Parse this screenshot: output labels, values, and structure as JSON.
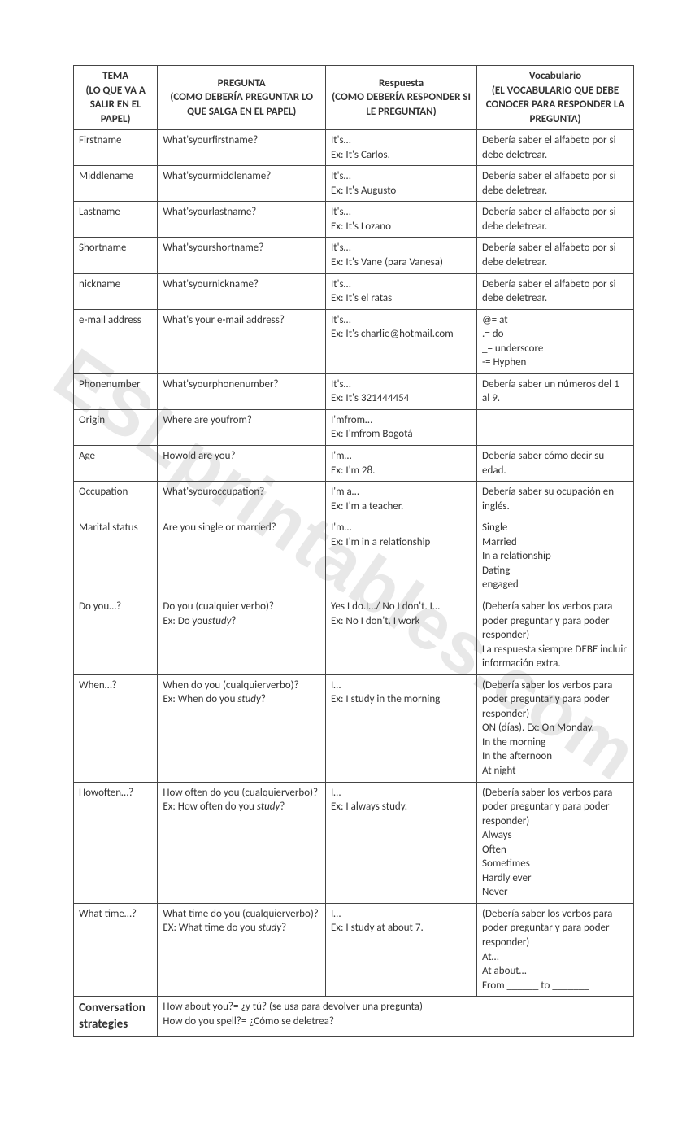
{
  "watermark": "ESLprintables.com",
  "headers": {
    "tema": "TEMA\n(LO QUE VA A SALIR EN EL PAPEL)",
    "pregunta": "PREGUNTA\n(COMO DEBERÍA PREGUNTAR LO QUE SALGA EN EL PAPEL)",
    "respuesta": "Respuesta\n(COMO DEBERÍA RESPONDER SI LE PREGUNTAN)",
    "vocabulario": "Vocabulario\n(EL VOCABULARIO QUE DEBE CONOCER PARA RESPONDER LA PREGUNTA)"
  },
  "rows": [
    {
      "tema": "Firstname",
      "pregunta": "What'syourfirstname?",
      "respuesta": "It's…\nEx: It's Carlos.",
      "vocab": "Debería saber el alfabeto por si debe deletrear."
    },
    {
      "tema": "Middlename",
      "pregunta": "What'syourmiddlename?",
      "respuesta": "It's…\nEx: It's Augusto",
      "vocab": "Debería saber el alfabeto por si debe deletrear."
    },
    {
      "tema": "Lastname",
      "pregunta": "What'syourlastname?",
      "respuesta": "It's…\nEx: It's Lozano",
      "vocab": "Debería saber el alfabeto por si debe deletrear."
    },
    {
      "tema": "Shortname",
      "pregunta": "What'syourshortname?",
      "respuesta": "It's…\nEx: It's Vane (para Vanesa)",
      "vocab": "Debería saber el alfabeto por si debe deletrear."
    },
    {
      "tema": "nickname",
      "pregunta": "What'syournickname?",
      "respuesta": "It's…\nEx: It's el ratas",
      "vocab": "Debería saber el alfabeto por si debe deletrear."
    },
    {
      "tema": "e-mail address",
      "pregunta": "What's your e-mail address?",
      "respuesta": "It's…\nEx: It's charlie@hotmail.com",
      "vocab": "@= at\n.= do\n_= underscore\n-= Hyphen"
    },
    {
      "tema": "Phonenumber",
      "pregunta": "What'syourphonenumber?",
      "respuesta": "It's…\nEx: It's 321444454",
      "vocab": "Debería saber un números del 1 al 9."
    },
    {
      "tema": "Origin",
      "pregunta": "Where are youfrom?",
      "respuesta": "I'mfrom…\nEx: I'mfrom Bogotá",
      "vocab": ""
    },
    {
      "tema": "Age",
      "pregunta": "Howold are you?",
      "respuesta": "I'm…\nEx: I'm 28.",
      "vocab": "Debería saber cómo decir su edad."
    },
    {
      "tema": "Occupation",
      "pregunta": "What'syouroccupation?",
      "respuesta": "I'm a…\nEx: I'm a teacher.",
      "vocab": "Debería saber su ocupación en inglés."
    },
    {
      "tema": "Marital status",
      "pregunta": "Are you single or married?",
      "respuesta": "I'm…\nEx: I'm in a relationship",
      "vocab": "Single\nMarried\nIn a relationship\nDating\nengaged"
    },
    {
      "tema": "Do you…?",
      "pregunta_html": "Do you (cualquier verbo)?<br>Ex: Do you<span class=\"italic\">study</span>?",
      "respuesta": "Yes I do.I…/ No I don't. I…\nEx: No I don't. I work",
      "vocab": "(Debería saber los verbos para poder preguntar y para poder responder)\nLa respuesta siempre DEBE incluir información extra."
    },
    {
      "tema": "When…?",
      "pregunta_html": "When do you (cualquierverbo)?<br>Ex: When do you <span class=\"italic\">study</span>?",
      "respuesta": "I…\nEx: I study in the morning",
      "vocab": "(Debería saber los verbos para poder preguntar y para poder responder)\nON (días). Ex: On Monday.\nIn the morning\nIn the afternoon\nAt night"
    },
    {
      "tema": "Howoften…?",
      "pregunta_html": "How often do you (cualquierverbo)?<br>Ex: How often do you <span class=\"italic\">study</span>?",
      "respuesta": "I…\nEx: I always study.",
      "vocab": "(Debería saber los verbos para poder preguntar y para poder responder)\nAlways\nOften\nSometimes\nHardly ever\nNever"
    },
    {
      "tema": "What time…?",
      "pregunta_html": "What time do you (cualquierverbo)?<br>EX: What time do you <span class=\"italic\">study</span>?",
      "respuesta": "I…\nEx: I study at about 7.",
      "vocab": "(Debería saber los verbos para poder preguntar y para poder responder)\nAt…\nAt about…\nFrom ______ to _______"
    }
  ],
  "footer": {
    "tema": "Conversation strategies",
    "content": "How about you?= ¿y tú? (se usa para devolver una pregunta)\nHow do you spell?= ¿Cómo se deletrea?"
  }
}
